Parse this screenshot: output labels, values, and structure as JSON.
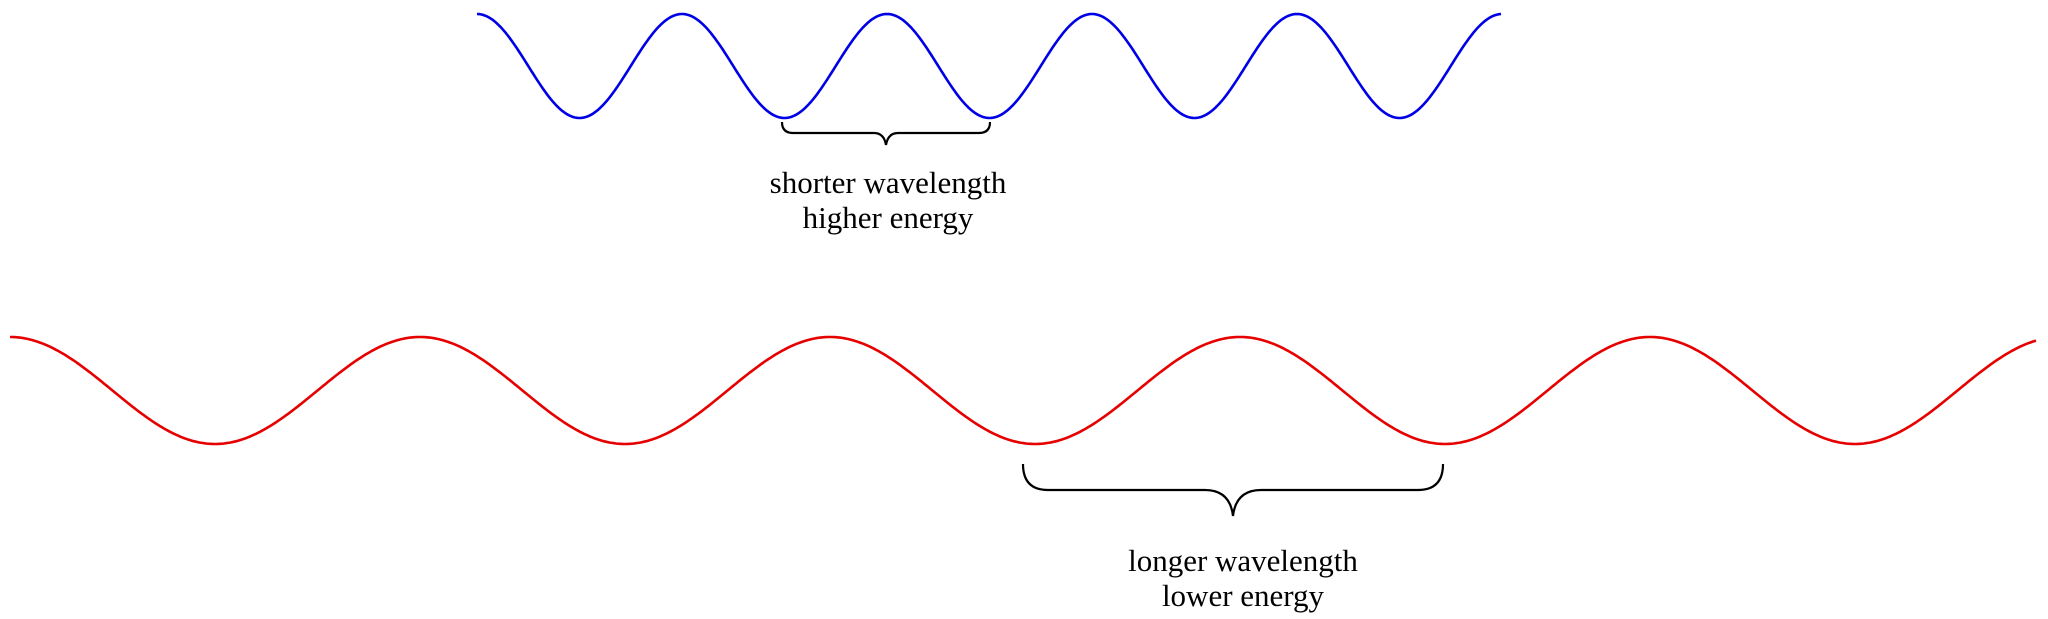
{
  "top_wave": {
    "label_line1": "shorter wavelength",
    "label_line2": "higher energy"
  },
  "bottom_wave": {
    "label_line1": "longer wavelength",
    "label_line2": "lower energy"
  }
}
